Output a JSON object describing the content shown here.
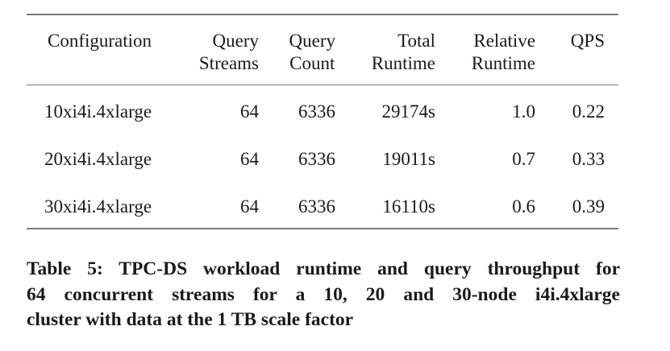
{
  "table": {
    "headers": [
      [
        "Configuration"
      ],
      [
        "Query",
        "Streams"
      ],
      [
        "Query",
        "Count"
      ],
      [
        "Total",
        "Runtime"
      ],
      [
        "Relative",
        "Runtime"
      ],
      [
        "QPS"
      ]
    ],
    "rows": [
      [
        "10xi4i.4xlarge",
        "64",
        "6336",
        "29174s",
        "1.0",
        "0.22"
      ],
      [
        "20xi4i.4xlarge",
        "64",
        "6336",
        "19011s",
        "0.7",
        "0.33"
      ],
      [
        "30xi4i.4xlarge",
        "64",
        "6336",
        "16110s",
        "0.6",
        "0.39"
      ]
    ]
  },
  "caption": {
    "lines": [
      "Table 5: TPC-DS workload runtime and query throughput for",
      "64 concurrent streams for a 10, 20 and 30-node i4i.4xlarge",
      "cluster with data at the 1 TB scale factor"
    ]
  }
}
